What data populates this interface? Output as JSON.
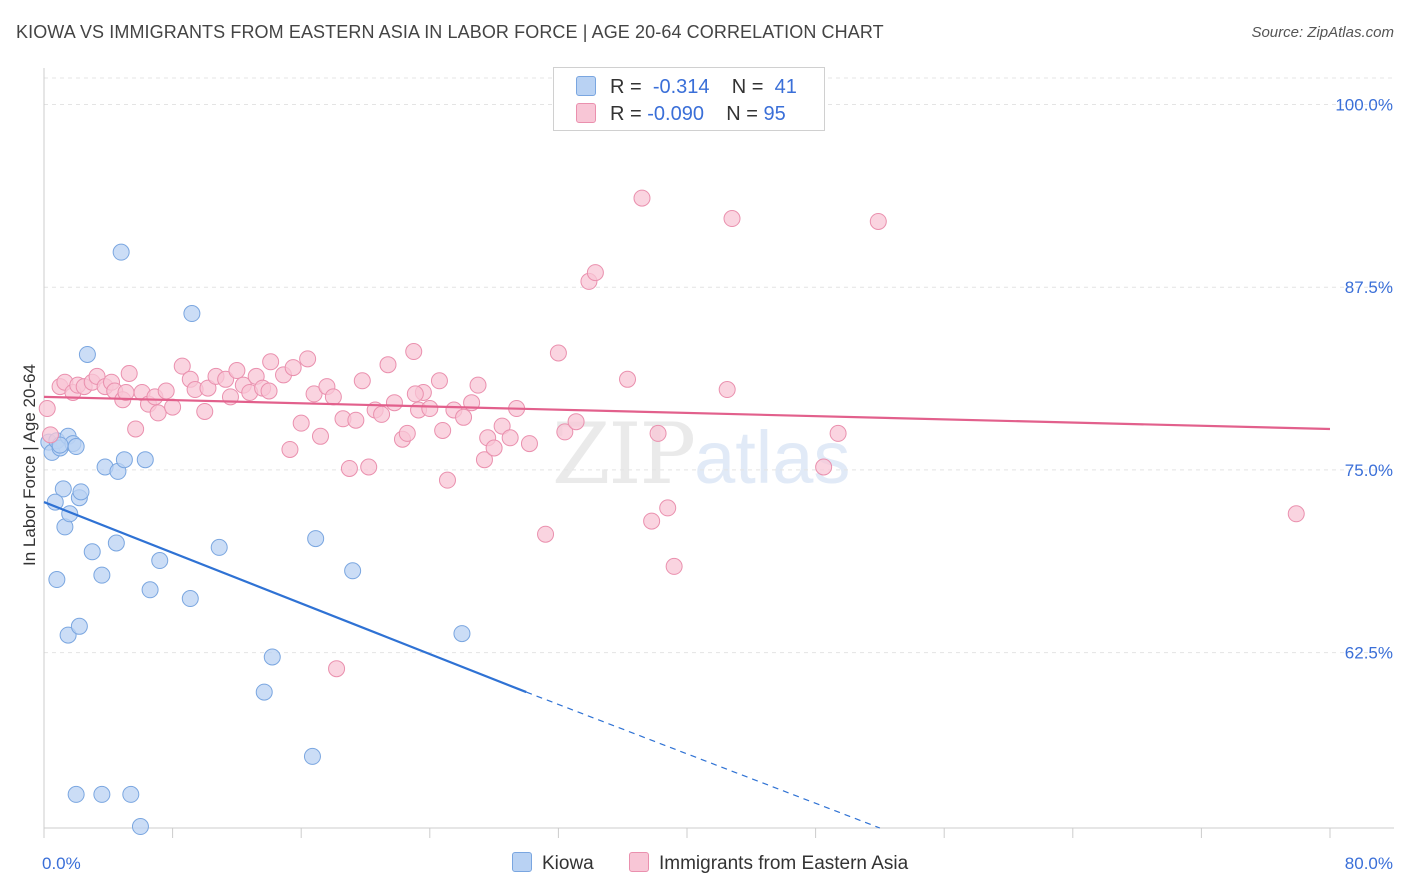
{
  "header": {
    "title": "KIOWA VS IMMIGRANTS FROM EASTERN ASIA IN LABOR FORCE | AGE 20-64 CORRELATION CHART",
    "source": "Source: ZipAtlas.com"
  },
  "watermark": {
    "zip": "ZIP",
    "atlas": "atlas"
  },
  "legend": {
    "rows": [
      {
        "r_label": "R =",
        "r_value": "-0.314",
        "n_label": "N =",
        "n_value": "41",
        "color": "#b9d2f3",
        "border": "#7aa6e0"
      },
      {
        "r_label": "R =",
        "r_value": "-0.090",
        "n_label": "N =",
        "n_value": "95",
        "color": "#f8c6d6",
        "border": "#ea90ae"
      }
    ]
  },
  "bottom_legend": {
    "kiowa": {
      "label": "Kiowa",
      "color": "#b9d2f3",
      "border": "#7aa6e0"
    },
    "immigrants": {
      "label": "Immigrants from Eastern Asia",
      "color": "#f8c6d6",
      "border": "#ea90ae"
    }
  },
  "chart_data": {
    "type": "scatter",
    "title": "KIOWA VS IMMIGRANTS FROM EASTERN ASIA IN LABOR FORCE | AGE 20-64 CORRELATION CHART",
    "xlabel": "",
    "ylabel": "In Labor Force | Age 20-64",
    "xlim": [
      0,
      80
    ],
    "ylim": [
      50.5,
      102.5
    ],
    "x_tick_labels": [
      "0.0%",
      "80.0%"
    ],
    "y_ticks": [
      100.0,
      87.5,
      75.0,
      62.5
    ],
    "y_tick_labels": [
      "100.0%",
      "87.5%",
      "75.0%",
      "62.5%"
    ],
    "grid": true,
    "series": [
      {
        "name": "Kiowa",
        "color": "#b9d2f3",
        "stroke": "#7aa6e0",
        "line_color": "#2f72d4",
        "trend": {
          "x0": 0.0,
          "y0": 72.8,
          "x1": 30.0,
          "y1": 59.8,
          "dash_x_end": 52.0,
          "dash_y_end": 50.5
        },
        "points": [
          [
            0.3,
            76.9
          ],
          [
            0.5,
            76.2
          ],
          [
            0.8,
            77.0
          ],
          [
            1.0,
            76.5
          ],
          [
            1.2,
            73.7
          ],
          [
            1.5,
            77.3
          ],
          [
            1.8,
            76.8
          ],
          [
            0.7,
            72.8
          ],
          [
            1.3,
            71.1
          ],
          [
            1.6,
            72.0
          ],
          [
            2.2,
            73.1
          ],
          [
            2.3,
            73.5
          ],
          [
            0.8,
            67.5
          ],
          [
            1.5,
            63.7
          ],
          [
            2.2,
            64.3
          ],
          [
            3.0,
            69.4
          ],
          [
            3.6,
            67.8
          ],
          [
            4.5,
            70.0
          ],
          [
            3.8,
            75.2
          ],
          [
            4.6,
            74.9
          ],
          [
            5.0,
            75.7
          ],
          [
            6.3,
            75.7
          ],
          [
            6.6,
            66.8
          ],
          [
            7.2,
            68.8
          ],
          [
            9.1,
            66.2
          ],
          [
            9.2,
            85.7
          ],
          [
            10.9,
            69.7
          ],
          [
            4.8,
            89.9
          ],
          [
            2.7,
            82.9
          ],
          [
            14.2,
            62.2
          ],
          [
            13.7,
            59.8
          ],
          [
            16.7,
            55.4
          ],
          [
            16.9,
            70.3
          ],
          [
            19.2,
            68.1
          ],
          [
            26.0,
            63.8
          ],
          [
            2.0,
            52.8
          ],
          [
            3.6,
            52.8
          ],
          [
            5.4,
            52.8
          ],
          [
            6.0,
            50.6
          ],
          [
            1.0,
            76.7
          ],
          [
            2.0,
            76.6
          ]
        ]
      },
      {
        "name": "Immigrants from Eastern Asia",
        "color": "#f8c6d6",
        "stroke": "#ea90ae",
        "line_color": "#e2608c",
        "trend": {
          "x0": 0.0,
          "y0": 80.0,
          "x1": 80.0,
          "y1": 77.8
        },
        "points": [
          [
            0.2,
            79.2
          ],
          [
            0.4,
            77.4
          ],
          [
            1.0,
            80.7
          ],
          [
            1.3,
            81.0
          ],
          [
            1.8,
            80.3
          ],
          [
            2.1,
            80.8
          ],
          [
            2.5,
            80.7
          ],
          [
            3.0,
            81.0
          ],
          [
            3.3,
            81.4
          ],
          [
            3.8,
            80.7
          ],
          [
            4.2,
            81.0
          ],
          [
            4.4,
            80.4
          ],
          [
            4.9,
            79.8
          ],
          [
            5.1,
            80.3
          ],
          [
            5.3,
            81.6
          ],
          [
            5.7,
            77.8
          ],
          [
            6.1,
            80.3
          ],
          [
            6.5,
            79.5
          ],
          [
            6.9,
            80.0
          ],
          [
            7.1,
            78.9
          ],
          [
            7.6,
            80.4
          ],
          [
            8.0,
            79.3
          ],
          [
            8.6,
            82.1
          ],
          [
            9.1,
            81.2
          ],
          [
            9.4,
            80.5
          ],
          [
            10.0,
            79.0
          ],
          [
            10.2,
            80.6
          ],
          [
            10.7,
            81.4
          ],
          [
            11.3,
            81.2
          ],
          [
            11.6,
            80.0
          ],
          [
            12.0,
            81.8
          ],
          [
            12.4,
            80.8
          ],
          [
            12.8,
            80.3
          ],
          [
            13.2,
            81.4
          ],
          [
            13.6,
            80.6
          ],
          [
            14.0,
            80.4
          ],
          [
            14.1,
            82.4
          ],
          [
            14.9,
            81.5
          ],
          [
            15.3,
            76.4
          ],
          [
            15.5,
            82.0
          ],
          [
            16.0,
            78.2
          ],
          [
            16.4,
            82.6
          ],
          [
            16.8,
            80.2
          ],
          [
            17.2,
            77.3
          ],
          [
            17.6,
            80.7
          ],
          [
            18.0,
            80.0
          ],
          [
            18.6,
            78.5
          ],
          [
            19.0,
            75.1
          ],
          [
            19.4,
            78.4
          ],
          [
            19.8,
            81.1
          ],
          [
            20.2,
            75.2
          ],
          [
            20.6,
            79.1
          ],
          [
            21.0,
            78.8
          ],
          [
            21.4,
            82.2
          ],
          [
            21.8,
            79.6
          ],
          [
            22.3,
            77.1
          ],
          [
            22.6,
            77.5
          ],
          [
            23.0,
            83.1
          ],
          [
            23.3,
            79.1
          ],
          [
            23.6,
            80.3
          ],
          [
            24.0,
            79.2
          ],
          [
            24.6,
            81.1
          ],
          [
            24.8,
            77.7
          ],
          [
            25.1,
            74.3
          ],
          [
            25.5,
            79.1
          ],
          [
            26.1,
            78.6
          ],
          [
            26.6,
            79.6
          ],
          [
            27.0,
            80.8
          ],
          [
            27.4,
            75.7
          ],
          [
            27.6,
            77.2
          ],
          [
            28.0,
            76.5
          ],
          [
            28.5,
            78.0
          ],
          [
            29.0,
            77.2
          ],
          [
            29.4,
            79.2
          ],
          [
            30.2,
            76.8
          ],
          [
            31.2,
            70.6
          ],
          [
            32.0,
            83.0
          ],
          [
            32.4,
            77.6
          ],
          [
            33.1,
            78.3
          ],
          [
            33.9,
            87.9
          ],
          [
            34.3,
            88.5
          ],
          [
            36.3,
            81.2
          ],
          [
            37.2,
            93.6
          ],
          [
            37.8,
            71.5
          ],
          [
            38.2,
            77.5
          ],
          [
            38.8,
            72.4
          ],
          [
            39.2,
            68.4
          ],
          [
            42.5,
            80.5
          ],
          [
            42.8,
            92.2
          ],
          [
            48.5,
            75.2
          ],
          [
            49.4,
            77.5
          ],
          [
            51.9,
            92.0
          ],
          [
            77.9,
            72.0
          ],
          [
            18.2,
            61.4
          ],
          [
            23.1,
            80.2
          ]
        ]
      }
    ]
  }
}
